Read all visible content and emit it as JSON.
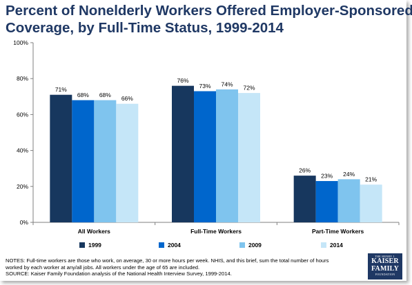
{
  "title_lines": [
    "Percent of Nonelderly Workers Offered Employer-Sponsored",
    "Coverage, by Full-Time Status, 1999-2014"
  ],
  "chart_data": {
    "type": "bar",
    "title": "Percent of Nonelderly Workers Offered Employer-Sponsored Coverage, by Full-Time Status, 1999-2014",
    "categories": [
      "All Workers",
      "Full-Time Workers",
      "Part-Time Workers"
    ],
    "series": [
      {
        "name": "1999",
        "values": [
          71,
          76,
          26
        ],
        "color": "#17375e"
      },
      {
        "name": "2004",
        "values": [
          68,
          73,
          23
        ],
        "color": "#0066cc"
      },
      {
        "name": "2009",
        "values": [
          68,
          74,
          24
        ],
        "color": "#7fc4ee"
      },
      {
        "name": "2014",
        "values": [
          66,
          72,
          21
        ],
        "color": "#c5e6f8"
      }
    ],
    "data_labels": [
      [
        "71%",
        "68%",
        "68%",
        "66%"
      ],
      [
        "76%",
        "73%",
        "74%",
        "72%"
      ],
      [
        "26%",
        "23%",
        "24%",
        "21%"
      ]
    ],
    "y_ticks": [
      "0%",
      "20%",
      "40%",
      "60%",
      "80%",
      "100%"
    ],
    "y_tick_values": [
      0,
      20,
      40,
      60,
      80,
      100
    ],
    "ylim": [
      0,
      100
    ],
    "xlabel": "",
    "ylabel": "",
    "grid": false,
    "legend_position": "bottom"
  },
  "notes": {
    "line1": "NOTES: Full-time workers are those who work, on average, 30 or more hours per week.  NHIS, and this brief, sum the total number of hours",
    "line2": "worked by each worker at any/all jobs.  All workers under the age of 65 are included.",
    "source": "SOURCE: Kaiser Family Foundation analysis of the National Health Interview Survey, 1999-2014."
  },
  "logo": {
    "top": "THE HENRY J.",
    "line1": "KAISER",
    "line2": "FAMILY",
    "bottom": "FOUNDATION"
  },
  "colors": {
    "title": "#1f3864",
    "axis": "#7f7f7f"
  }
}
